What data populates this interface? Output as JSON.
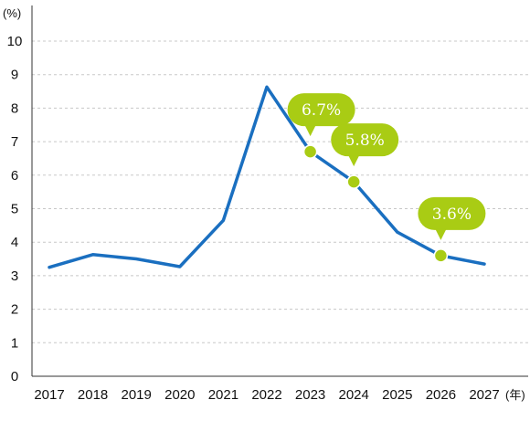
{
  "chart_data": {
    "type": "line",
    "y_unit": "(%)",
    "x_unit": "(年)",
    "x": [
      "2017",
      "2018",
      "2019",
      "2020",
      "2021",
      "2022",
      "2023",
      "2024",
      "2025",
      "2026",
      "2027"
    ],
    "series": [
      {
        "values": [
          3.25,
          3.63,
          3.5,
          3.27,
          4.65,
          8.63,
          6.7,
          5.8,
          4.3,
          3.6,
          3.35
        ]
      }
    ],
    "ylim": [
      0,
      10
    ],
    "yticks": [
      "0",
      "1",
      "2",
      "3",
      "4",
      "5",
      "6",
      "7",
      "8",
      "9",
      "10"
    ],
    "grid": true,
    "grid_style": "dashed horizontal",
    "highlighted_points": [
      {
        "x": "2023",
        "value": 6.7,
        "label": "6.7%"
      },
      {
        "x": "2024",
        "value": 5.8,
        "label": "5.8%"
      },
      {
        "x": "2026",
        "value": 3.6,
        "label": "3.6%"
      }
    ],
    "colors": {
      "line": "#1a6fc0",
      "marker": "#a9cc14",
      "callout": "#a9cc14",
      "grid": "#c8c8c8",
      "axis": "#333333"
    }
  }
}
